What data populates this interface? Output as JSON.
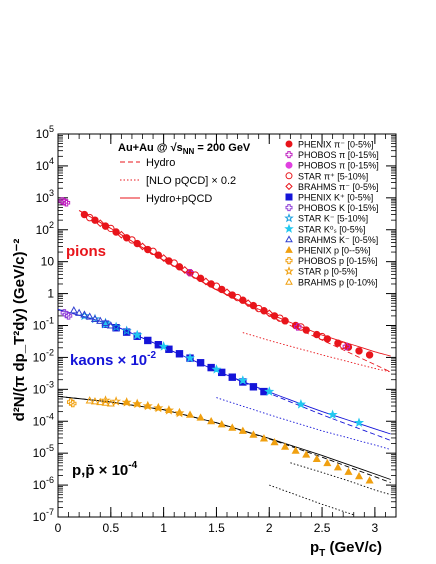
{
  "chart_data": {
    "type": "scatter",
    "ylabel": "d²N/(π dp_T²dy) (GeV/c)⁻²",
    "xlabel_main": "p",
    "xlabel_sub": "T",
    "xlabel_unit": " (GeV/c)",
    "xlim": [
      0,
      3.2
    ],
    "ylim_log10": [
      -7,
      5
    ],
    "log_y": true,
    "x_ticks": [
      "0",
      "0.5",
      "1",
      "1.5",
      "2",
      "2.5",
      "3"
    ],
    "y_ticks": [
      {
        "base": "10",
        "exp": "5",
        "value": 5
      },
      {
        "base": "10",
        "exp": "4",
        "value": 4
      },
      {
        "base": "10",
        "exp": "3",
        "value": 3
      },
      {
        "base": "10",
        "exp": "2",
        "value": 2
      },
      {
        "base": "10",
        "exp": "",
        "value": 1
      },
      {
        "base": "1",
        "exp": "",
        "value": 0
      },
      {
        "base": "10",
        "exp": "-1",
        "value": -1
      },
      {
        "base": "10",
        "exp": "-2",
        "value": -2
      },
      {
        "base": "10",
        "exp": "-3",
        "value": -3
      },
      {
        "base": "10",
        "exp": "-4",
        "value": -4
      },
      {
        "base": "10",
        "exp": "-5",
        "value": -5
      },
      {
        "base": "10",
        "exp": "-6",
        "value": -6
      },
      {
        "base": "10",
        "exp": "-7",
        "value": -7
      }
    ],
    "system_label": {
      "pre": "Au+Au @ ",
      "sub": "NN",
      "post": " = 200 GeV"
    },
    "curve_legend": [
      {
        "label": "Hydro",
        "style": "dashed"
      },
      {
        "label": "[NLO pQCD] × 0.2",
        "style": "dotted"
      },
      {
        "label": "Hydro+pQCD",
        "style": "solid"
      }
    ],
    "legend": [
      {
        "label": "PHENIX π⁻ [0-5%]",
        "marker": "circle",
        "filled": true,
        "color": "#e8151b"
      },
      {
        "label": "PHOBOS π [0-15%]",
        "marker": "cross",
        "filled": false,
        "color": "#c020c0"
      },
      {
        "label": "PHOBOS π [0-15%]",
        "marker": "circle",
        "filled": true,
        "color": "#e040e0"
      },
      {
        "label": "STAR π⁺ [5-10%]",
        "marker": "circle",
        "filled": false,
        "color": "#e8151b"
      },
      {
        "label": "BRAHMS π⁻ [0-5%]",
        "marker": "diamond",
        "filled": false,
        "color": "#e8151b"
      },
      {
        "label": "PHENIX K⁺ [0-5%]",
        "marker": "square",
        "filled": true,
        "color": "#1414d8"
      },
      {
        "label": "PHOBOS K [0-15%]",
        "marker": "cross",
        "filled": false,
        "color": "#9040d8"
      },
      {
        "label": "STAR K⁻ [5-10%]",
        "marker": "star",
        "filled": false,
        "color": "#1aa0e0"
      },
      {
        "label": "STAR K⁰ₛ [0-5%]",
        "marker": "star",
        "filled": true,
        "color": "#22c8f0"
      },
      {
        "label": "BRAHMS K⁻ [0-5%]",
        "marker": "triangle",
        "filled": false,
        "color": "#3040d0"
      },
      {
        "label": "PHENIX p [0--5%]",
        "marker": "triangle",
        "filled": true,
        "color": "#f0a010"
      },
      {
        "label": "PHOBOS p [0-15%]",
        "marker": "cross",
        "filled": false,
        "color": "#f0a010"
      },
      {
        "label": "STAR p [0-5%]",
        "marker": "star",
        "filled": false,
        "color": "#f0a010"
      },
      {
        "label": "BRAHMS p [0-10%]",
        "marker": "triangle",
        "filled": false,
        "color": "#f0a010"
      }
    ],
    "species_labels": [
      {
        "text": "pions",
        "color": "#e8151b"
      },
      {
        "text": "kaons × 10",
        "exp": "-2",
        "color": "#1414d8"
      },
      {
        "text": "p,p̄ × 10",
        "exp": "-4",
        "color": "#000000"
      }
    ],
    "series": [
      {
        "name": "PHENIX π⁻ [0-5%]",
        "x": [
          0.25,
          0.35,
          0.45,
          0.55,
          0.65,
          0.75,
          0.85,
          0.95,
          1.05,
          1.15,
          1.25,
          1.35,
          1.45,
          1.55,
          1.65,
          1.75,
          1.85,
          1.95,
          2.05,
          2.15,
          2.25,
          2.35,
          2.45,
          2.55,
          2.65,
          2.75,
          2.85,
          2.95
        ],
        "y": [
          300,
          200,
          130,
          85,
          56,
          37,
          24,
          16,
          10.5,
          6.9,
          4.5,
          3.0,
          2.0,
          1.35,
          0.9,
          0.62,
          0.42,
          0.29,
          0.2,
          0.14,
          0.1,
          0.072,
          0.052,
          0.038,
          0.028,
          0.021,
          0.016,
          0.012
        ]
      },
      {
        "name": "PHOBOS π [0-15%] (cross)",
        "x": [
          0.04,
          0.06,
          0.08
        ],
        "y": [
          800,
          750,
          700
        ]
      },
      {
        "name": "PHOBOS π [0-15%]",
        "x": [
          1.25,
          2.27,
          2.73
        ],
        "y": [
          4.5,
          0.09,
          0.022
        ]
      },
      {
        "name": "STAR π⁺ [5-10%]",
        "x": [
          0.3,
          0.5,
          0.7,
          0.9,
          1.1,
          1.3,
          1.5,
          1.7,
          1.9,
          2.1,
          2.3,
          2.5,
          2.7
        ],
        "y": [
          240,
          110,
          48,
          21,
          9,
          3.8,
          1.7,
          0.75,
          0.34,
          0.17,
          0.09,
          0.045,
          0.024
        ]
      },
      {
        "name": "BRAHMS π⁻ [0-5%]",
        "x": [
          0.4,
          0.6,
          0.8,
          1.0,
          1.2,
          1.4,
          1.6,
          1.8,
          2.0
        ],
        "y": [
          160,
          70,
          30,
          13,
          5.5,
          2.4,
          1.1,
          0.5,
          0.24
        ]
      },
      {
        "name": "PHENIX K⁺ [0-5%]",
        "x": [
          0.45,
          0.55,
          0.65,
          0.75,
          0.85,
          0.95,
          1.05,
          1.15,
          1.25,
          1.35,
          1.45,
          1.55,
          1.65,
          1.75,
          1.85,
          1.95
        ],
        "y": [
          0.11,
          0.085,
          0.062,
          0.046,
          0.034,
          0.025,
          0.018,
          0.013,
          0.0095,
          0.0068,
          0.0048,
          0.0034,
          0.0024,
          0.0017,
          0.0012,
          0.00085
        ]
      },
      {
        "name": "PHOBOS K [0-15%]",
        "x": [
          0.06,
          0.08,
          0.1
        ],
        "y": [
          0.25,
          0.22,
          0.2
        ]
      },
      {
        "name": "STAR K⁻ [5-10%]",
        "x": [
          0.25,
          0.35,
          0.45,
          0.55,
          0.65,
          0.75
        ],
        "y": [
          0.2,
          0.16,
          0.12,
          0.09,
          0.068,
          0.05
        ]
      },
      {
        "name": "STAR K⁰ₛ [0-5%]",
        "x": [
          0.45,
          0.75,
          1.0,
          1.25,
          1.5,
          1.75,
          2.0,
          2.3,
          2.6,
          2.85
        ],
        "y": [
          0.11,
          0.05,
          0.022,
          0.0095,
          0.0042,
          0.0019,
          0.00085,
          0.00034,
          0.00016,
          9e-05
        ]
      },
      {
        "name": "BRAHMS K⁻ [0-5%]",
        "x": [
          0.15,
          0.2,
          0.25,
          0.3,
          0.35,
          0.4,
          0.45,
          0.5
        ],
        "y": [
          0.3,
          0.25,
          0.22,
          0.19,
          0.16,
          0.14,
          0.12,
          0.1
        ]
      },
      {
        "name": "PHENIX p [0--5%]",
        "x": [
          0.65,
          0.75,
          0.85,
          0.95,
          1.05,
          1.15,
          1.25,
          1.35,
          1.45,
          1.55,
          1.65,
          1.75,
          1.85,
          1.95,
          2.05,
          2.15,
          2.25,
          2.35,
          2.45,
          2.55,
          2.65,
          2.75,
          2.85,
          2.95
        ],
        "y": [
          0.0004,
          0.00036,
          0.00031,
          0.00027,
          0.00023,
          0.00019,
          0.00016,
          0.00013,
          0.0001,
          8e-05,
          6.3e-05,
          5e-05,
          3.8e-05,
          2.9e-05,
          2.2e-05,
          1.6e-05,
          1.2e-05,
          9e-06,
          6.6e-06,
          4.9e-06,
          3.6e-06,
          2.6e-06,
          1.9e-06,
          1.4e-06
        ]
      },
      {
        "name": "PHOBOS p [0-15%]",
        "x": [
          0.12,
          0.14
        ],
        "y": [
          0.0004,
          0.00036
        ]
      },
      {
        "name": "STAR p [0-5%]",
        "x": [
          0.45,
          0.55,
          0.65,
          0.75,
          0.85,
          0.95,
          1.05,
          1.15
        ],
        "y": [
          0.00045,
          0.00042,
          0.00039,
          0.00035,
          0.0003,
          0.00026,
          0.00022,
          0.00018
        ]
      },
      {
        "name": "BRAHMS p [0-10%]",
        "x": [
          0.3,
          0.35,
          0.4,
          0.45,
          0.5
        ],
        "y": [
          0.00045,
          0.00042,
          0.0004,
          0.00038,
          0.00036
        ]
      }
    ],
    "curves": [
      {
        "name": "Hydro (pions)",
        "style": "dashed",
        "color": "#e8151b",
        "x": [
          0.2,
          0.5,
          1.0,
          1.5,
          2.0,
          2.5,
          3.15
        ],
        "y": [
          400,
          110,
          11,
          1.3,
          0.2,
          0.035,
          0.0035
        ]
      },
      {
        "name": "[NLO pQCD] × 0.2 (pions)",
        "style": "dotted",
        "color": "#e8151b",
        "x": [
          1.75,
          2.0,
          2.5,
          3.0,
          3.15
        ],
        "y": [
          0.06,
          0.034,
          0.012,
          0.0045,
          0.0035
        ]
      },
      {
        "name": "Hydro+pQCD (pions)",
        "style": "solid",
        "color": "#e8151b",
        "x": [
          0.2,
          0.5,
          1.0,
          1.5,
          2.0,
          2.5,
          3.0,
          3.15
        ],
        "y": [
          400,
          110,
          11,
          1.3,
          0.23,
          0.05,
          0.015,
          0.011
        ]
      },
      {
        "name": "Hydro (kaons)",
        "style": "dashed",
        "color": "#1414d8",
        "x": [
          0.0,
          0.5,
          1.0,
          1.5,
          2.0,
          2.5,
          3.15
        ],
        "y": [
          0.32,
          0.11,
          0.021,
          0.0038,
          0.00075,
          0.00016,
          2.5e-05
        ]
      },
      {
        "name": "[NLO pQCD] × 0.2 (kaons)",
        "style": "dotted",
        "color": "#1414d8",
        "x": [
          1.5,
          2.0,
          2.5,
          3.0,
          3.15
        ],
        "y": [
          0.00055,
          0.00016,
          5e-05,
          1.8e-05,
          1.3e-05
        ]
      },
      {
        "name": "Hydro+pQCD (kaons)",
        "style": "solid",
        "color": "#1414d8",
        "x": [
          0.0,
          0.5,
          1.0,
          1.5,
          2.0,
          2.5,
          3.15
        ],
        "y": [
          0.32,
          0.11,
          0.021,
          0.0038,
          0.00082,
          0.0002,
          4e-05
        ]
      },
      {
        "name": "Hydro (protons)",
        "style": "dashed",
        "color": "#000000",
        "x": [
          0.0,
          0.5,
          1.0,
          1.5,
          2.0,
          2.5,
          3.15
        ],
        "y": [
          0.0006,
          0.0004,
          0.00023,
          9e-05,
          2.8e-05,
          7.5e-06,
          1.2e-06
        ]
      },
      {
        "name": "[NLO pQCD] × 0.2 (protons, low)",
        "style": "dotted",
        "color": "#000000",
        "x": [
          2.0,
          2.5,
          3.0,
          3.15
        ],
        "y": [
          1e-06,
          2.5e-07,
          7e-08,
          5e-08
        ]
      },
      {
        "name": "[NLO pQCD] × 0.2 (protons, high)",
        "style": "dotted",
        "color": "#000000",
        "x": [
          2.2,
          2.5,
          2.8,
          3.0,
          3.15
        ],
        "y": [
          5e-06,
          2.5e-06,
          1.2e-06,
          7e-07,
          5e-07
        ]
      },
      {
        "name": "Hydro+pQCD (protons)",
        "style": "solid",
        "color": "#000000",
        "x": [
          0.0,
          0.5,
          1.0,
          1.5,
          2.0,
          2.5,
          3.15
        ],
        "y": [
          0.0006,
          0.0004,
          0.00023,
          9e-05,
          2.9e-05,
          8.5e-06,
          1.5e-06
        ]
      }
    ]
  }
}
